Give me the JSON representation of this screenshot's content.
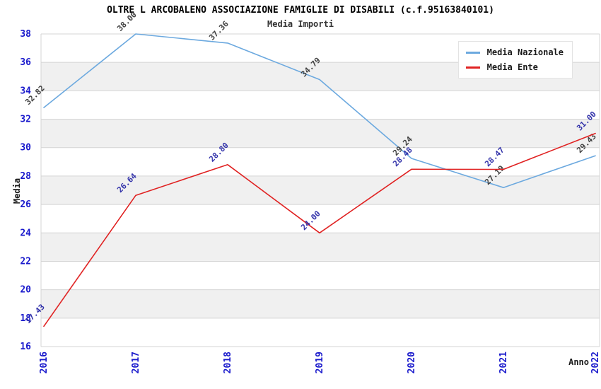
{
  "chart_data": {
    "type": "line",
    "title": "OLTRE L ARCOBALENO ASSOCIAZIONE FAMIGLIE DI DISABILI (c.f.95163840101)",
    "subtitle": "Media Importi",
    "xlabel": "Anno",
    "ylabel": "Media",
    "x": [
      "2016",
      "2017",
      "2018",
      "2019",
      "2020",
      "2021",
      "2022"
    ],
    "ylim": [
      16,
      38
    ],
    "yticks": [
      38,
      36,
      34,
      32,
      30,
      28,
      26,
      24,
      22,
      20,
      18,
      16
    ],
    "grid": "horizontal-only",
    "interlaced_bands": true,
    "legend_position": "top-right",
    "series": [
      {
        "name": "Media Nazionale",
        "color": "#6CA9DF",
        "label_color": "#404040",
        "values": [
          32.82,
          38.0,
          37.36,
          34.79,
          29.24,
          27.19,
          29.43
        ],
        "labels": [
          "32.82",
          "38.00",
          "37.36",
          "34.79",
          "29.24",
          "27.19",
          "29.43"
        ]
      },
      {
        "name": "Media Ente",
        "color": "#E02222",
        "label_color": "#3333AA",
        "values": [
          17.43,
          26.64,
          28.8,
          24.0,
          28.48,
          28.47,
          31.0
        ],
        "labels": [
          "17.43",
          "26.64",
          "28.80",
          "24.00",
          "28.48",
          "28.47",
          "31.00"
        ]
      }
    ]
  },
  "style_colors": {
    "axis_tick_label": "#1A1ACC",
    "axis_title": "#1A1A1A",
    "gridline": "#D4D4D4",
    "band_gray": "#F0F0F0",
    "band_white": "#FFFFFF",
    "title": "#000000",
    "subtitle": "#333333"
  }
}
